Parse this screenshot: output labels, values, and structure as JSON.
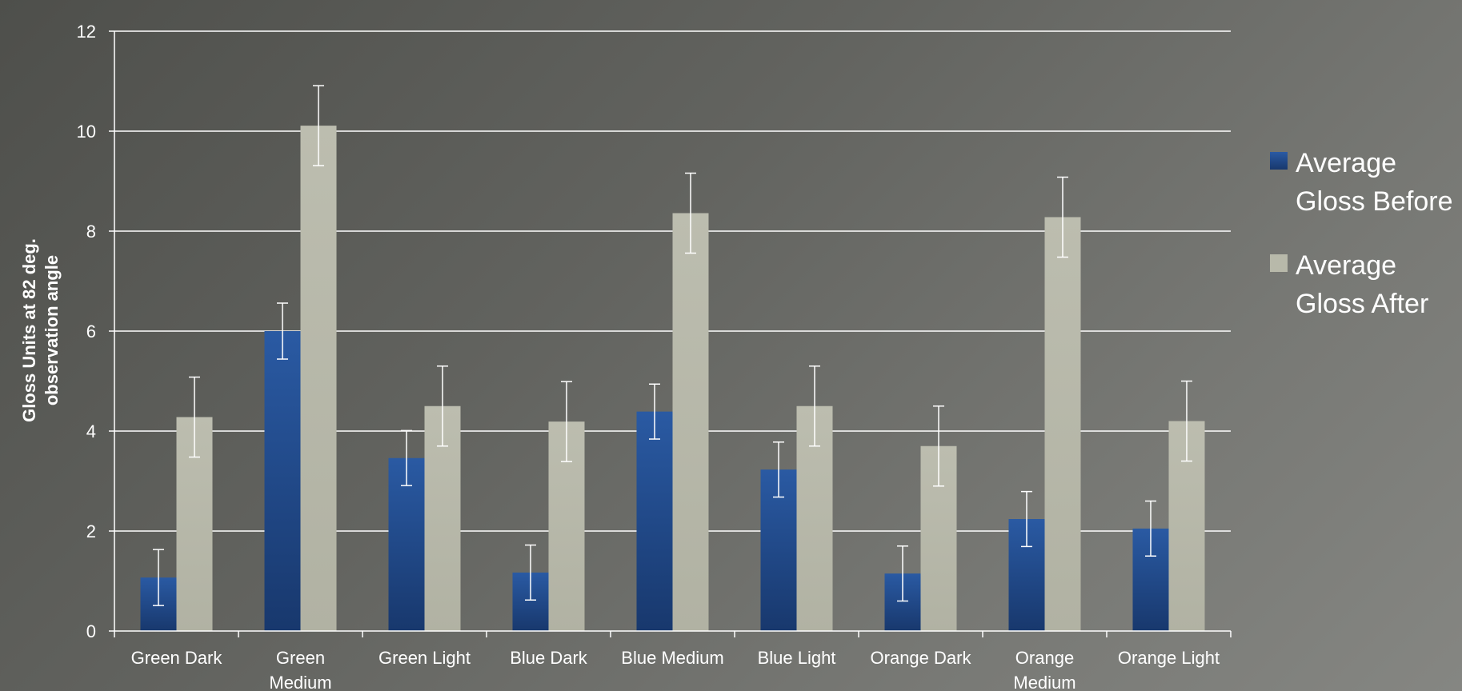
{
  "chart_data": {
    "type": "bar",
    "categories": [
      "Green Dark",
      "Green Medium",
      "Green Light",
      "Blue Dark",
      "Blue Medium",
      "Blue Light",
      "Orange Dark",
      "Orange Medium",
      "Orange Light"
    ],
    "category_lines": [
      [
        "Green Dark"
      ],
      [
        "Green",
        "Medium"
      ],
      [
        "Green Light"
      ],
      [
        "Blue Dark"
      ],
      [
        "Blue Medium"
      ],
      [
        "Blue Light"
      ],
      [
        "Orange Dark"
      ],
      [
        "Orange",
        "Medium"
      ],
      [
        "Orange Light"
      ]
    ],
    "series": [
      {
        "name": "Average Gloss Before",
        "color": "#1f4a8c",
        "values": [
          1.07,
          6.0,
          3.46,
          1.17,
          4.39,
          3.23,
          1.15,
          2.24,
          2.05
        ],
        "error": [
          0.56,
          0.56,
          0.55,
          0.55,
          0.55,
          0.55,
          0.55,
          0.55,
          0.55
        ]
      },
      {
        "name": "Average Gloss After",
        "color": "#b8b9aa",
        "values": [
          4.28,
          10.11,
          4.5,
          4.19,
          8.36,
          4.5,
          3.7,
          8.28,
          4.2
        ],
        "error": [
          0.8,
          0.8,
          0.8,
          0.8,
          0.8,
          0.8,
          0.8,
          0.8,
          0.8
        ]
      }
    ],
    "ylabel": "Gloss Units at 82 deg. observation angle",
    "ylabel_lines": [
      "Gloss Units at 82 deg.",
      "observation angle"
    ],
    "xlabel": "",
    "ylim": [
      0,
      12
    ],
    "yticks": [
      0,
      2,
      4,
      6,
      8,
      10,
      12
    ],
    "grid": true,
    "legend_position": "right",
    "axis_color": "#ffffff",
    "gridline_color": "#ffffff",
    "errorbar_color": "#ffffff"
  },
  "legend": {
    "items": [
      {
        "label": "Average Gloss Before",
        "color": "#1f4a8c"
      },
      {
        "label": "Average Gloss After",
        "color": "#b8b9aa"
      }
    ]
  }
}
